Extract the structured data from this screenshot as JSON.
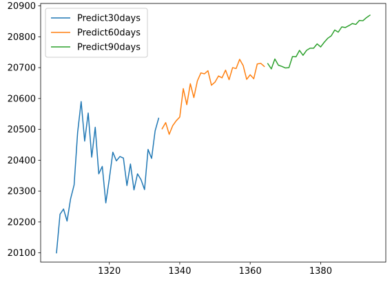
{
  "chart_data": {
    "type": "line",
    "title": "",
    "xlabel": "",
    "ylabel": "",
    "xlim": [
      1300.5,
      1398.5
    ],
    "ylim": [
      20070,
      20908
    ],
    "x_ticks": [
      1320,
      1340,
      1360,
      1380
    ],
    "y_ticks": [
      20100,
      20200,
      20300,
      20400,
      20500,
      20600,
      20700,
      20800,
      20900
    ],
    "grid": false,
    "legend_position": "top-left",
    "series": [
      {
        "name": "Predict30days",
        "color": "#1f77b4",
        "x_start": 1305,
        "values": [
          20100,
          20225,
          20242,
          20203,
          20275,
          20320,
          20490,
          20590,
          20462,
          20553,
          20410,
          20507,
          20356,
          20380,
          20262,
          20340,
          20426,
          20398,
          20412,
          20407,
          20318,
          20388,
          20304,
          20356,
          20337,
          20305,
          20435,
          20406,
          20495,
          20536
        ]
      },
      {
        "name": "Predict60days",
        "color": "#ff7f0e",
        "x_start": 1335,
        "values": [
          20502,
          20522,
          20484,
          20512,
          20528,
          20540,
          20632,
          20580,
          20648,
          20603,
          20657,
          20683,
          20680,
          20690,
          20643,
          20653,
          20673,
          20667,
          20692,
          20661,
          20700,
          20697,
          20727,
          20707,
          20662,
          20677,
          20664,
          20712,
          20714,
          20704
        ]
      },
      {
        "name": "Predict90days",
        "color": "#2ca02c",
        "x_start": 1365,
        "values": [
          20713,
          20696,
          20728,
          20708,
          20704,
          20699,
          20700,
          20736,
          20735,
          20756,
          20740,
          20756,
          20763,
          20763,
          20777,
          20767,
          20782,
          20795,
          20803,
          20822,
          20815,
          20832,
          20830,
          20836,
          20843,
          20840,
          20853,
          20852,
          20862,
          20870
        ]
      }
    ]
  }
}
